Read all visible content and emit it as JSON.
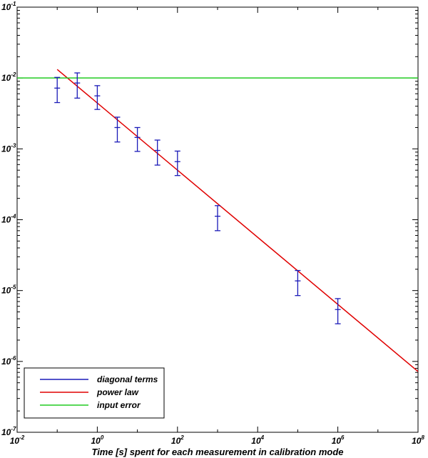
{
  "chart_data": {
    "type": "scatter",
    "xlabel": "Time [s] spent for each measurement in calibration mode",
    "ylabel": "",
    "x_scale": "log",
    "y_scale": "log",
    "xlim": [
      0.01,
      100000000
    ],
    "ylim": [
      1e-07,
      0.1
    ],
    "grid": false,
    "legend_position": "bottom-left",
    "x_ticks": [
      {
        "base": "10",
        "exp": "-2",
        "value": 0.01
      },
      {
        "base": "10",
        "exp": "0",
        "value": 1
      },
      {
        "base": "10",
        "exp": "2",
        "value": 100
      },
      {
        "base": "10",
        "exp": "4",
        "value": 10000
      },
      {
        "base": "10",
        "exp": "6",
        "value": 1000000
      },
      {
        "base": "10",
        "exp": "8",
        "value": 100000000
      }
    ],
    "y_ticks": [
      {
        "base": "10",
        "exp": "-7",
        "value": 1e-07
      },
      {
        "base": "10",
        "exp": "-6",
        "value": 1e-06
      },
      {
        "base": "10",
        "exp": "-5",
        "value": 1e-05
      },
      {
        "base": "10",
        "exp": "-4",
        "value": 0.0001
      },
      {
        "base": "10",
        "exp": "-3",
        "value": 0.001
      },
      {
        "base": "10",
        "exp": "-2",
        "value": 0.01
      },
      {
        "base": "10",
        "exp": "-1",
        "value": 0.1
      }
    ],
    "series": [
      {
        "name": "diagonal terms",
        "kind": "errorbar",
        "color": "#1a1ab8",
        "points": [
          {
            "x": 0.1,
            "y": 0.0072,
            "ylow": 0.0045,
            "yhigh": 0.0102
          },
          {
            "x": 0.316,
            "y": 0.0085,
            "ylow": 0.0052,
            "yhigh": 0.0118
          },
          {
            "x": 1,
            "y": 0.0056,
            "ylow": 0.0036,
            "yhigh": 0.0078
          },
          {
            "x": 3.16,
            "y": 0.002,
            "ylow": 0.00125,
            "yhigh": 0.0028
          },
          {
            "x": 10,
            "y": 0.00145,
            "ylow": 0.00092,
            "yhigh": 0.002
          },
          {
            "x": 31.6,
            "y": 0.00095,
            "ylow": 0.00059,
            "yhigh": 0.00133
          },
          {
            "x": 100,
            "y": 0.00066,
            "ylow": 0.00042,
            "yhigh": 0.00093
          },
          {
            "x": 1000,
            "y": 0.000112,
            "ylow": 7e-05,
            "yhigh": 0.000158
          },
          {
            "x": 100000,
            "y": 1.37e-05,
            "ylow": 8.5e-06,
            "yhigh": 1.92e-05
          },
          {
            "x": 1000000,
            "y": 5.4e-06,
            "ylow": 3.4e-06,
            "yhigh": 7.7e-06
          }
        ]
      },
      {
        "name": "power law",
        "kind": "line",
        "color": "#e00000",
        "x": [
          0.1,
          100000000
        ],
        "y": [
          0.0132,
          7.2e-07
        ]
      },
      {
        "name": "input error",
        "kind": "line",
        "color": "#22cc22",
        "x": [
          0.01,
          100000000
        ],
        "y": [
          0.01,
          0.01
        ]
      }
    ]
  }
}
